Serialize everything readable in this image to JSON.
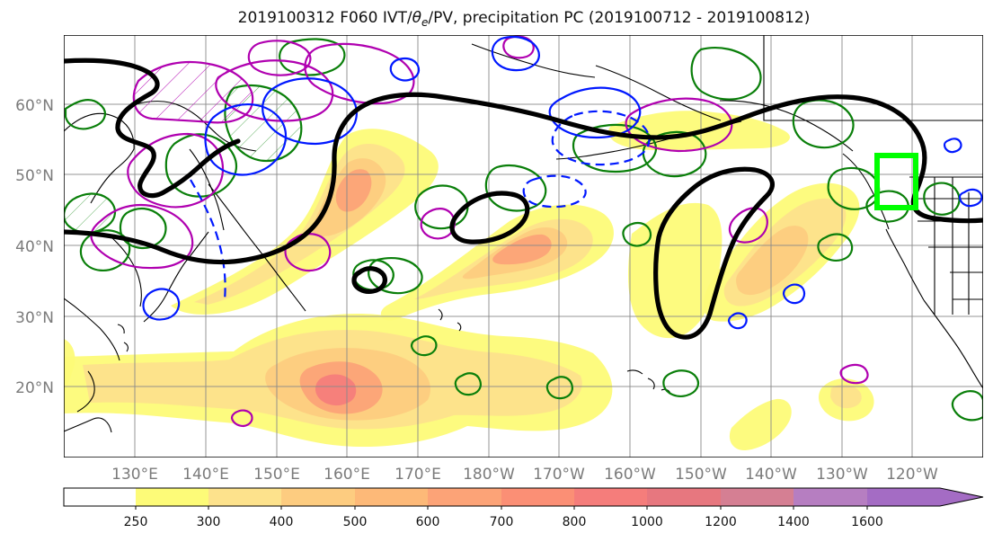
{
  "chart_data": {
    "type": "map",
    "title": "2019100312 F060 IVT/θe/PV, precipitation PC (2019100712 - 2019100812)",
    "title_parts": {
      "before_theta": "2019100312 F060 IVT/",
      "theta": "θ",
      "theta_subscript": "e",
      "after_theta": "/PV, precipitation PC (2019100712 - 2019100812)"
    },
    "latitude_labels": [
      "60°N",
      "50°N",
      "40°N",
      "30°N",
      "20°N"
    ],
    "longitude_labels": [
      "130°E",
      "140°E",
      "150°E",
      "160°E",
      "170°E",
      "180°W",
      "170°W",
      "160°W",
      "150°W",
      "140°W",
      "130°W",
      "120°W"
    ],
    "latitude_values": [
      60,
      50,
      40,
      30,
      20
    ],
    "longitude_values": [
      130,
      140,
      150,
      160,
      170,
      180,
      -170,
      -160,
      -150,
      -140,
      -130,
      -120
    ],
    "colorbar": {
      "labels": [
        "250",
        "300",
        "400",
        "500",
        "600",
        "700",
        "800",
        "1000",
        "1200",
        "1400",
        "1600"
      ],
      "colors": [
        "#ffffff",
        "#fdfb78",
        "#fde28c",
        "#fdcc80",
        "#fdb978",
        "#fca377",
        "#fb8f75",
        "#f57d7b",
        "#e7777f",
        "#d57f93",
        "#b67ec1",
        "#a46cc4"
      ],
      "extends": "max"
    },
    "box_color": "#00ff00",
    "ivt_color": "#f08870",
    "theta_color": "#000000",
    "pv_positive_color": "#b000b0",
    "pv_negative_color": "#0018ff",
    "green_contour_color": "#0a7f0a"
  }
}
